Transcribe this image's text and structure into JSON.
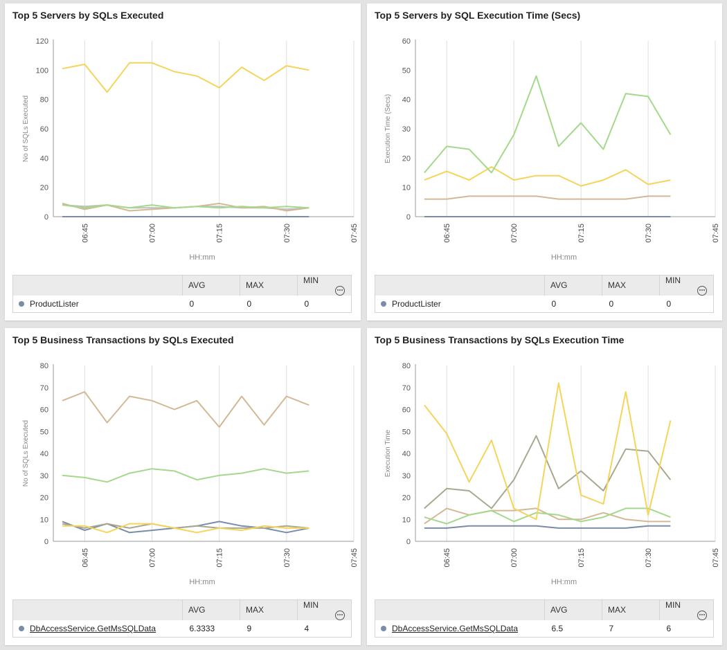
{
  "x_ticks": [
    "06:45",
    "07:00",
    "07:15",
    "07:30",
    "07:45"
  ],
  "legend_headers": {
    "avg": "AVG",
    "max": "MAX",
    "min": "MIN"
  },
  "more_icon": "more-icon",
  "panels": [
    {
      "title": "Top 5 Servers by SQLs Executed",
      "legend_row": {
        "name": "ProductLister",
        "avg": "0",
        "max": "0",
        "min": "0",
        "link": false,
        "color": "#7b8ca8"
      }
    },
    {
      "title": "Top 5 Servers by SQL Execution Time (Secs)",
      "legend_row": {
        "name": "ProductLister",
        "avg": "0",
        "max": "0",
        "min": "0",
        "link": false,
        "color": "#7b8ca8"
      }
    },
    {
      "title": "Top 5 Business Transactions by SQLs Executed",
      "legend_row": {
        "name": "DbAccessService.GetMsSQLData",
        "avg": "6.3333",
        "max": "9",
        "min": "4",
        "link": true,
        "color": "#7b8ca8"
      }
    },
    {
      "title": "Top 5 Business Transactions by SQLs Execution Time",
      "legend_row": {
        "name": "DbAccessService.GetMsSQLData",
        "avg": "6.5",
        "max": "7",
        "min": "6",
        "link": true,
        "color": "#7b8ca8"
      }
    }
  ],
  "chart_data": [
    {
      "type": "line",
      "title": "Top 5 Servers by SQLs Executed",
      "xlabel": "HH:mm",
      "ylabel": "No of SQLs Executed",
      "ylim": [
        0,
        120
      ],
      "yticks": [
        0,
        20,
        40,
        60,
        80,
        100,
        120
      ],
      "xlim": [
        "06:38",
        "07:45"
      ],
      "x": [
        "06:40",
        "06:45",
        "06:50",
        "06:55",
        "07:00",
        "07:05",
        "07:10",
        "07:15",
        "07:20",
        "07:25",
        "07:30",
        "07:35"
      ],
      "grid": true,
      "series": [
        {
          "color": "#f5d45a",
          "values": [
            101,
            104,
            85,
            105,
            105,
            99,
            96,
            88,
            102,
            93,
            103,
            100
          ]
        },
        {
          "color": "#a3d98a",
          "values": [
            8,
            6,
            8,
            6,
            8,
            6,
            7,
            6,
            7,
            6,
            7,
            6
          ]
        },
        {
          "color": "#d3b896",
          "values": [
            9,
            5,
            8,
            4,
            5,
            6,
            7,
            9,
            6,
            7,
            4,
            6
          ]
        },
        {
          "color": "#bfbfbf",
          "values": [
            8,
            7,
            8,
            6,
            6,
            6,
            7,
            7,
            6,
            6,
            5,
            6
          ]
        },
        {
          "color": "#7b8ca8",
          "values": [
            0,
            0,
            0,
            0,
            0,
            0,
            0,
            0,
            0,
            0,
            0,
            0
          ]
        }
      ]
    },
    {
      "type": "line",
      "title": "Top 5 Servers by SQL Execution Time (Secs)",
      "xlabel": "HH:mm",
      "ylabel": "Execution Time (Secs)",
      "ylim": [
        0,
        60
      ],
      "yticks": [
        0,
        10,
        20,
        30,
        40,
        50,
        60
      ],
      "xlim": [
        "06:38",
        "07:45"
      ],
      "x": [
        "06:40",
        "06:45",
        "06:50",
        "06:55",
        "07:00",
        "07:05",
        "07:10",
        "07:15",
        "07:20",
        "07:25",
        "07:30",
        "07:35"
      ],
      "grid": true,
      "series": [
        {
          "color": "#a3d98a",
          "values": [
            15,
            24,
            23,
            15,
            28,
            48,
            24,
            32,
            23,
            42,
            41,
            28
          ]
        },
        {
          "color": "#f5d45a",
          "values": [
            12.5,
            15.5,
            12.5,
            17,
            12.5,
            14,
            14,
            10.5,
            12.5,
            16,
            11,
            12.5
          ]
        },
        {
          "color": "#d3b896",
          "values": [
            6,
            6,
            7,
            7,
            7,
            7,
            6,
            6,
            6,
            6,
            7,
            7
          ]
        },
        {
          "color": "#7b8ca8",
          "values": [
            0,
            0,
            0,
            0,
            0,
            0,
            0,
            0,
            0,
            0,
            0,
            0
          ]
        }
      ]
    },
    {
      "type": "line",
      "title": "Top 5 Business Transactions by SQLs Executed",
      "xlabel": "HH:mm",
      "ylabel": "No of SQLs Executed",
      "ylim": [
        0,
        80
      ],
      "yticks": [
        0,
        10,
        20,
        30,
        40,
        50,
        60,
        70,
        80
      ],
      "xlim": [
        "06:38",
        "07:45"
      ],
      "x": [
        "06:40",
        "06:45",
        "06:50",
        "06:55",
        "07:00",
        "07:05",
        "07:10",
        "07:15",
        "07:20",
        "07:25",
        "07:30",
        "07:35"
      ],
      "grid": true,
      "series": [
        {
          "color": "#d3b896",
          "values": [
            64,
            68,
            54,
            66,
            64,
            60,
            64,
            52,
            66,
            53,
            66,
            62
          ]
        },
        {
          "color": "#a3d98a",
          "values": [
            30,
            29,
            27,
            31,
            33,
            32,
            28,
            30,
            31,
            33,
            31,
            32
          ]
        },
        {
          "color": "#f5d45a",
          "values": [
            7,
            7,
            4,
            8,
            8,
            6,
            4,
            6,
            5,
            7,
            6,
            6
          ]
        },
        {
          "color": "#a8a890",
          "values": [
            8,
            6,
            8,
            6,
            8,
            6,
            7,
            6,
            6,
            6,
            7,
            6
          ]
        },
        {
          "color": "#7b8ca8",
          "values": [
            9,
            5,
            8,
            4,
            5,
            6,
            7,
            9,
            7,
            6,
            4,
            6
          ]
        }
      ]
    },
    {
      "type": "line",
      "title": "Top 5 Business Transactions by SQLs Execution Time",
      "xlabel": "HH:mm",
      "ylabel": "Execution Time",
      "ylim": [
        0,
        80
      ],
      "yticks": [
        0,
        10,
        20,
        30,
        40,
        50,
        60,
        70,
        80
      ],
      "xlim": [
        "06:38",
        "07:45"
      ],
      "x": [
        "06:40",
        "06:45",
        "06:50",
        "06:55",
        "07:00",
        "07:05",
        "07:10",
        "07:15",
        "07:20",
        "07:25",
        "07:30",
        "07:35"
      ],
      "grid": true,
      "series": [
        {
          "color": "#f5d45a",
          "values": [
            62,
            49,
            27,
            46,
            15,
            10,
            72,
            21,
            17,
            68,
            12,
            55
          ]
        },
        {
          "color": "#a8a890",
          "values": [
            15,
            24,
            23,
            15,
            28,
            48,
            24,
            32,
            23,
            42,
            41,
            28
          ]
        },
        {
          "color": "#a3d98a",
          "values": [
            11,
            8,
            12,
            14,
            9,
            13,
            12,
            9,
            11,
            15,
            15,
            11
          ]
        },
        {
          "color": "#d3b896",
          "values": [
            8,
            15,
            12,
            14,
            14,
            15,
            10,
            10,
            13,
            10,
            9,
            9
          ]
        },
        {
          "color": "#7b8ca8",
          "values": [
            6,
            6,
            7,
            7,
            7,
            7,
            6,
            6,
            6,
            6,
            7,
            7
          ]
        }
      ]
    }
  ]
}
